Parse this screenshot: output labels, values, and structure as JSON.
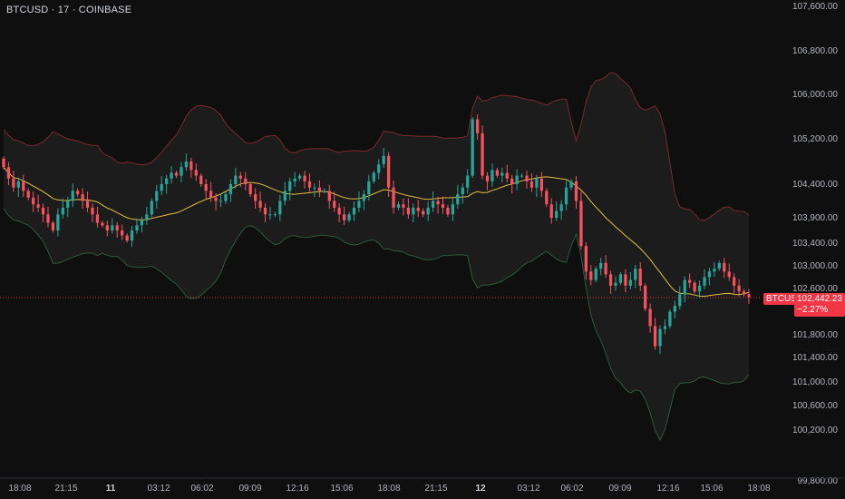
{
  "header": {
    "title": "BTCUSD · 17 · COINBASE"
  },
  "last": {
    "symbol": "BTCUSD",
    "price": "102,442.23",
    "change": "−2.27%",
    "value": 102442.23
  },
  "colors": {
    "up": "#26a69a",
    "down": "#f7525f",
    "basis": "#e2c044",
    "upper": "#7a2a30",
    "lower": "#2d5a3a",
    "band_fill": "#1c1c1c",
    "last": "#f23645"
  },
  "chart_data": {
    "type": "candlestick",
    "title": "BTCUSD · 17 · COINBASE",
    "indicator": "Bollinger Bands",
    "y_ticks": [
      "107,600.00",
      "106,800.00",
      "106,000.00",
      "105,200.00",
      "104,400.00",
      "103,900.00",
      "103,400.00",
      "103,000.00",
      "102,600.00",
      "101,800.00",
      "101,400.00",
      "101,000.00",
      "100,600.00",
      "100,200.00",
      "99,800.00"
    ],
    "x_ticks": [
      {
        "label": "18:08",
        "bold": false
      },
      {
        "label": "21:15",
        "bold": false
      },
      {
        "label": "11",
        "bold": true
      },
      {
        "label": "03:12",
        "bold": false
      },
      {
        "label": "06:02",
        "bold": false
      },
      {
        "label": "09:09",
        "bold": false
      },
      {
        "label": "12:16",
        "bold": false
      },
      {
        "label": "15:06",
        "bold": false
      },
      {
        "label": "18:08",
        "bold": false
      },
      {
        "label": "21:15",
        "bold": false
      },
      {
        "label": "12",
        "bold": true
      },
      {
        "label": "03:12",
        "bold": false
      },
      {
        "label": "06:02",
        "bold": false
      },
      {
        "label": "09:09",
        "bold": false
      },
      {
        "label": "12:16",
        "bold": false
      },
      {
        "label": "15:06",
        "bold": false
      },
      {
        "label": "18:08",
        "bold": false
      }
    ],
    "closes": [
      104700,
      104500,
      104350,
      104450,
      104300,
      104200,
      104100,
      104050,
      103950,
      103800,
      103650,
      103950,
      104050,
      104150,
      104300,
      104250,
      104150,
      104050,
      103950,
      103800,
      103750,
      103650,
      103750,
      103650,
      103550,
      103450,
      103650,
      103750,
      103850,
      103950,
      104150,
      104300,
      104400,
      104500,
      104600,
      104550,
      104700,
      104800,
      104650,
      104550,
      104400,
      104300,
      104200,
      104150,
      104150,
      104250,
      104400,
      104550,
      104500,
      104400,
      104250,
      104150,
      104050,
      103950,
      103950,
      103950,
      104150,
      104300,
      104450,
      104500,
      104550,
      104450,
      104350,
      104350,
      104300,
      104300,
      104150,
      104050,
      103950,
      103850,
      103950,
      104050,
      104150,
      104250,
      104450,
      104600,
      104750,
      104900,
      104350,
      104050,
      104100,
      104050,
      103950,
      104050,
      104000,
      103950,
      104050,
      104150,
      104100,
      104050,
      103950,
      104100,
      104250,
      104350,
      104550,
      105550,
      105300,
      104550,
      104450,
      104650,
      104550,
      104600,
      104500,
      104400,
      104550,
      104550,
      104450,
      104350,
      104500,
      104300,
      104100,
      103900,
      104000,
      104100,
      104350,
      104450,
      104150,
      103350,
      102900,
      102750,
      102950,
      103050,
      102850,
      102650,
      102700,
      102850,
      102650,
      102750,
      102950,
      102650,
      102250,
      101950,
      101600,
      101900,
      101950,
      102200,
      102300,
      102500,
      102750,
      102700,
      102550,
      102650,
      102800,
      102900,
      102950,
      103050,
      102900,
      102800,
      102650,
      102550,
      102500,
      102450
    ]
  }
}
